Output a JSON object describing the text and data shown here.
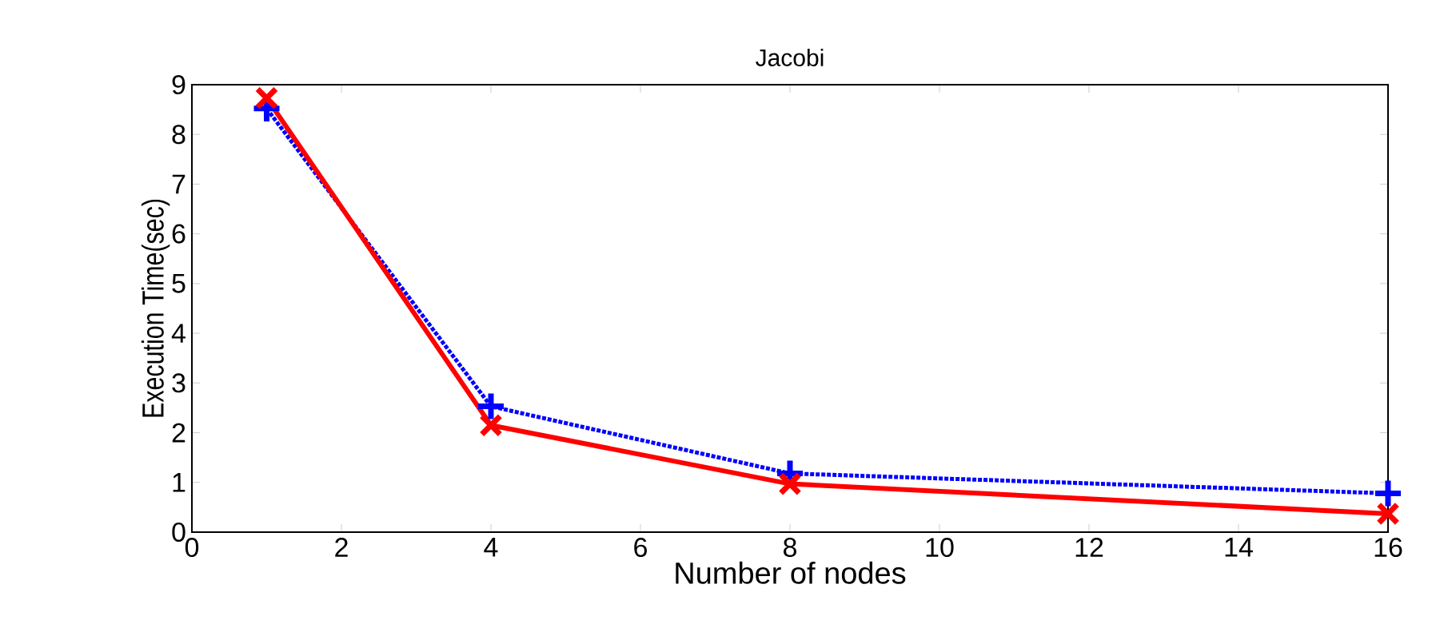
{
  "chart_data": {
    "type": "line",
    "title": "Jacobi",
    "xlabel": "Number of nodes",
    "ylabel": "Execution Time(sec)",
    "x": [
      1,
      4,
      8,
      16
    ],
    "series": [
      {
        "color": "#0000ff",
        "values": [
          8.52,
          2.53,
          1.18,
          0.78
        ],
        "marker": "plus",
        "line_style": "dotted"
      },
      {
        "color": "#ff0000",
        "values": [
          8.73,
          2.15,
          0.97,
          0.37
        ],
        "marker": "cross",
        "line_style": "solid"
      }
    ],
    "xlim": [
      0,
      16
    ],
    "ylim": [
      0,
      9
    ],
    "xticks": [
      0,
      2,
      4,
      6,
      8,
      10,
      12,
      14,
      16
    ],
    "yticks": [
      0,
      1,
      2,
      3,
      4,
      5,
      6,
      7,
      8,
      9
    ],
    "grid": false
  }
}
